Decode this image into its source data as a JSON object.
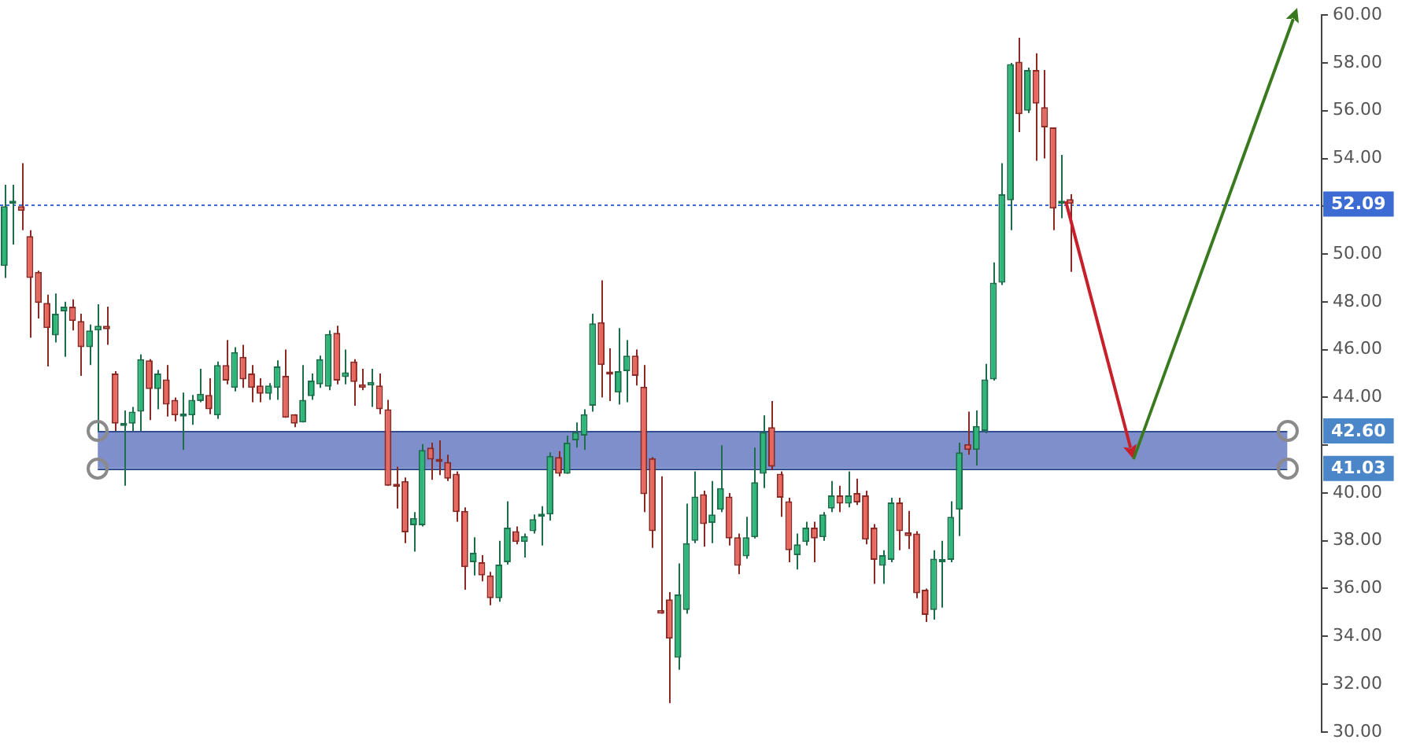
{
  "chart_data": {
    "type": "candlestick",
    "relative": false,
    "categories": [
      null,
      null,
      null,
      null,
      null,
      null,
      null,
      null,
      null,
      null,
      null,
      null,
      null,
      null,
      null,
      null,
      null,
      null,
      null,
      null,
      null,
      null,
      null,
      null,
      null,
      null,
      null,
      null,
      null,
      null,
      null,
      null,
      null,
      null,
      null,
      null,
      null,
      null,
      null,
      null,
      null,
      null,
      null,
      null,
      null,
      null,
      null,
      null,
      null,
      null,
      null,
      null,
      null,
      null,
      null,
      null,
      null,
      null,
      null,
      null,
      null,
      null,
      null,
      null,
      null,
      null,
      null,
      null,
      null,
      null,
      null,
      null,
      null,
      null,
      null,
      null,
      null,
      null,
      null,
      null,
      null,
      null,
      null,
      null,
      null,
      null,
      null,
      null,
      null,
      null,
      null,
      null,
      null,
      null,
      null,
      null,
      null,
      null,
      null,
      null,
      null,
      null,
      null,
      null,
      null,
      null,
      null,
      null,
      null,
      null,
      null,
      null,
      null,
      null,
      null,
      null,
      null,
      null,
      null,
      null,
      null,
      null,
      null,
      null,
      null,
      null,
      null,
      null,
      null,
      null,
      null,
      null,
      null,
      null,
      null,
      null,
      null,
      null,
      null,
      null,
      null,
      null,
      null,
      null,
      null,
      null,
      null,
      null,
      null,
      null,
      null,
      null,
      null,
      null,
      null
    ],
    "ohlc": [
      [
        49.5,
        52.9,
        49.0,
        52.0
      ],
      [
        52.1,
        52.9,
        50.4,
        52.15
      ],
      [
        52.0,
        53.8,
        51.0,
        51.8
      ],
      [
        50.75,
        51.0,
        46.5,
        49.0
      ],
      [
        49.25,
        49.3,
        47.3,
        47.95
      ],
      [
        47.95,
        48.3,
        45.3,
        46.9
      ],
      [
        46.6,
        48.35,
        46.3,
        47.5
      ],
      [
        47.6,
        48.0,
        45.7,
        47.8
      ],
      [
        47.8,
        48.1,
        46.8,
        47.2
      ],
      [
        47.2,
        47.5,
        44.9,
        46.1
      ],
      [
        46.1,
        47.05,
        45.35,
        46.8
      ],
      [
        46.8,
        47.9,
        42.6,
        47.0
      ],
      [
        47.0,
        47.8,
        46.2,
        46.85
      ],
      [
        45.0,
        45.1,
        42.6,
        42.9
      ],
      [
        42.8,
        43.45,
        40.3,
        42.9
      ],
      [
        42.9,
        43.6,
        42.6,
        43.4
      ],
      [
        43.4,
        45.8,
        42.6,
        45.6
      ],
      [
        45.55,
        45.6,
        43.05,
        44.35
      ],
      [
        44.35,
        45.15,
        43.5,
        45.0
      ],
      [
        44.75,
        45.35,
        43.2,
        43.7
      ],
      [
        43.9,
        44.0,
        43.0,
        43.25
      ],
      [
        43.2,
        44.2,
        41.8,
        43.25
      ],
      [
        43.25,
        44.1,
        42.85,
        43.9
      ],
      [
        43.85,
        45.2,
        43.8,
        44.15
      ],
      [
        44.1,
        44.8,
        43.3,
        43.5
      ],
      [
        43.25,
        45.5,
        43.1,
        45.35
      ],
      [
        45.35,
        46.4,
        44.55,
        44.7
      ],
      [
        44.4,
        46.1,
        44.25,
        45.9
      ],
      [
        45.7,
        46.2,
        44.4,
        44.75
      ],
      [
        45.0,
        45.35,
        43.8,
        44.4
      ],
      [
        44.5,
        44.8,
        43.8,
        44.15
      ],
      [
        44.15,
        44.6,
        43.9,
        44.5
      ],
      [
        44.4,
        45.55,
        43.9,
        45.3
      ],
      [
        44.9,
        46.0,
        43.15,
        43.15
      ],
      [
        43.3,
        43.3,
        42.75,
        42.9
      ],
      [
        42.95,
        45.35,
        42.95,
        43.9
      ],
      [
        44.05,
        45.0,
        43.9,
        44.7
      ],
      [
        44.55,
        45.75,
        44.4,
        45.6
      ],
      [
        44.45,
        46.8,
        44.3,
        46.65
      ],
      [
        46.7,
        47.0,
        44.55,
        44.7
      ],
      [
        44.85,
        46.0,
        44.55,
        45.05
      ],
      [
        45.5,
        45.6,
        43.65,
        44.65
      ],
      [
        44.55,
        45.2,
        44.3,
        44.4
      ],
      [
        44.5,
        45.2,
        43.6,
        44.65
      ],
      [
        44.5,
        45.0,
        43.3,
        43.5
      ],
      [
        43.5,
        43.9,
        40.3,
        40.3
      ],
      [
        40.3,
        41.1,
        39.35,
        40.25
      ],
      [
        40.5,
        40.65,
        37.9,
        38.35
      ],
      [
        38.65,
        39.2,
        37.55,
        38.95
      ],
      [
        38.65,
        42.05,
        38.6,
        41.8
      ],
      [
        41.9,
        42.1,
        40.55,
        41.4
      ],
      [
        41.35,
        42.2,
        40.75,
        41.3
      ],
      [
        41.3,
        41.6,
        40.5,
        40.6
      ],
      [
        40.8,
        40.9,
        38.8,
        39.2
      ],
      [
        39.25,
        39.4,
        35.95,
        36.9
      ],
      [
        37.1,
        38.15,
        36.55,
        37.5
      ],
      [
        37.1,
        37.4,
        36.3,
        36.55
      ],
      [
        36.55,
        36.7,
        35.3,
        35.6
      ],
      [
        35.6,
        38.0,
        35.45,
        37.0
      ],
      [
        37.1,
        39.65,
        37.0,
        38.55
      ],
      [
        38.4,
        38.6,
        37.85,
        37.95
      ],
      [
        37.95,
        38.3,
        37.3,
        38.2
      ],
      [
        38.4,
        39.1,
        38.3,
        38.9
      ],
      [
        39.0,
        39.45,
        37.8,
        39.05
      ],
      [
        39.1,
        41.7,
        38.85,
        41.55
      ],
      [
        41.5,
        41.75,
        40.7,
        40.8
      ],
      [
        40.8,
        42.4,
        40.8,
        42.1
      ],
      [
        42.2,
        42.95,
        41.9,
        42.55
      ],
      [
        42.4,
        43.5,
        41.8,
        43.3
      ],
      [
        43.65,
        47.5,
        43.4,
        47.1
      ],
      [
        47.15,
        48.9,
        44.0,
        45.35
      ],
      [
        45.05,
        46.05,
        43.85,
        44.95
      ],
      [
        44.2,
        46.9,
        43.7,
        45.1
      ],
      [
        45.1,
        46.4,
        43.8,
        45.75
      ],
      [
        45.75,
        46.0,
        44.5,
        44.9
      ],
      [
        44.45,
        45.35,
        39.2,
        39.95
      ],
      [
        41.45,
        41.5,
        37.7,
        38.4
      ],
      [
        35.1,
        40.7,
        34.95,
        34.95
      ],
      [
        35.55,
        35.85,
        31.2,
        33.9
      ],
      [
        33.1,
        37.05,
        32.6,
        35.75
      ],
      [
        35.1,
        39.55,
        34.95,
        37.9
      ],
      [
        38.0,
        40.9,
        37.9,
        39.85
      ],
      [
        39.95,
        40.1,
        37.75,
        38.7
      ],
      [
        38.75,
        40.5,
        37.9,
        39.1
      ],
      [
        39.3,
        42.0,
        39.2,
        40.2
      ],
      [
        39.85,
        40.0,
        37.8,
        38.1
      ],
      [
        38.15,
        38.3,
        36.6,
        36.95
      ],
      [
        37.35,
        39.0,
        37.25,
        38.15
      ],
      [
        38.15,
        41.9,
        38.1,
        40.45
      ],
      [
        40.8,
        43.25,
        40.2,
        42.55
      ],
      [
        42.75,
        43.85,
        40.95,
        41.1
      ],
      [
        40.8,
        40.9,
        39.0,
        39.8
      ],
      [
        39.65,
        39.8,
        37.1,
        37.6
      ],
      [
        37.4,
        38.3,
        36.8,
        37.85
      ],
      [
        37.95,
        38.8,
        37.8,
        38.55
      ],
      [
        38.55,
        38.8,
        37.1,
        38.1
      ],
      [
        38.15,
        39.2,
        38.0,
        39.1
      ],
      [
        39.35,
        40.5,
        39.2,
        39.9
      ],
      [
        39.9,
        40.3,
        39.2,
        39.55
      ],
      [
        39.55,
        40.9,
        39.4,
        39.9
      ],
      [
        40.0,
        40.6,
        39.5,
        39.6
      ],
      [
        39.9,
        40.1,
        37.85,
        38.05
      ],
      [
        38.55,
        38.7,
        36.2,
        37.2
      ],
      [
        36.95,
        37.6,
        36.2,
        37.4
      ],
      [
        37.2,
        39.8,
        37.1,
        39.6
      ],
      [
        39.6,
        39.8,
        37.6,
        38.4
      ],
      [
        38.35,
        39.25,
        37.65,
        38.2
      ],
      [
        38.3,
        38.4,
        35.6,
        35.8
      ],
      [
        35.95,
        36.0,
        34.6,
        34.9
      ],
      [
        35.1,
        37.6,
        34.7,
        37.25
      ],
      [
        37.1,
        38.0,
        35.2,
        37.2
      ],
      [
        37.2,
        39.65,
        37.1,
        39.0
      ],
      [
        39.3,
        42.1,
        38.2,
        41.7
      ],
      [
        42.05,
        43.4,
        41.6,
        41.8
      ],
      [
        41.8,
        43.45,
        41.15,
        42.8
      ],
      [
        42.6,
        45.4,
        42.5,
        44.75
      ],
      [
        44.75,
        49.65,
        44.7,
        48.8
      ],
      [
        48.8,
        53.8,
        48.7,
        52.5
      ],
      [
        52.25,
        58.0,
        51.0,
        57.95
      ],
      [
        58.05,
        59.05,
        55.1,
        55.85
      ],
      [
        56.0,
        57.8,
        55.9,
        57.7
      ],
      [
        57.7,
        58.4,
        53.9,
        56.3
      ],
      [
        56.15,
        57.7,
        54.0,
        55.3
      ],
      [
        55.3,
        55.3,
        51.0,
        51.9
      ],
      [
        52.1,
        54.15,
        51.5,
        52.2
      ],
      [
        52.3,
        52.5,
        49.25,
        52.1
      ],
      null,
      null,
      null,
      null,
      null,
      null,
      null,
      null,
      null,
      null,
      null,
      null,
      null,
      null,
      null,
      null,
      null,
      null,
      null,
      null,
      null,
      null,
      null,
      null,
      null,
      null,
      null,
      null,
      null
    ],
    "ylim": [
      30,
      60
    ],
    "yticks": [
      {
        "value": 30,
        "label": "30.00"
      },
      {
        "value": 32,
        "label": "32.00"
      },
      {
        "value": 34,
        "label": "34.00"
      },
      {
        "value": 36,
        "label": "36.00"
      },
      {
        "value": 38,
        "label": "38.00"
      },
      {
        "value": 40,
        "label": "40.00"
      },
      {
        "value": 42,
        "label": null
      },
      {
        "value": 44,
        "label": "44.00"
      },
      {
        "value": 46,
        "label": "46.00"
      },
      {
        "value": 48,
        "label": "48.00"
      },
      {
        "value": 50,
        "label": "50.00"
      },
      {
        "value": 52,
        "label": null
      },
      {
        "value": 54,
        "label": "54.00"
      },
      {
        "value": 56,
        "label": "56.00"
      },
      {
        "value": 58,
        "label": "58.00"
      },
      {
        "value": 60,
        "label": "60.00"
      }
    ],
    "tick_labels": "y",
    "grid": false,
    "legend": false,
    "ref_lines": [
      {
        "axis": "y",
        "value": 52.09,
        "label": "52.09",
        "color": "#3d6bd4",
        "line_style": "dotted"
      },
      {
        "axis": "y",
        "value": 42.6,
        "label": "42.60",
        "color": "#2f4f8f",
        "line_style": "solid"
      },
      {
        "axis": "y",
        "value": 41.03,
        "label": "41.03",
        "color": "#2f4f8f",
        "line_style": "solid"
      }
    ],
    "bands": [
      {
        "axis": "y",
        "from": 41.03,
        "to": 42.6,
        "color": "#7f8fcc"
      }
    ]
  }
}
